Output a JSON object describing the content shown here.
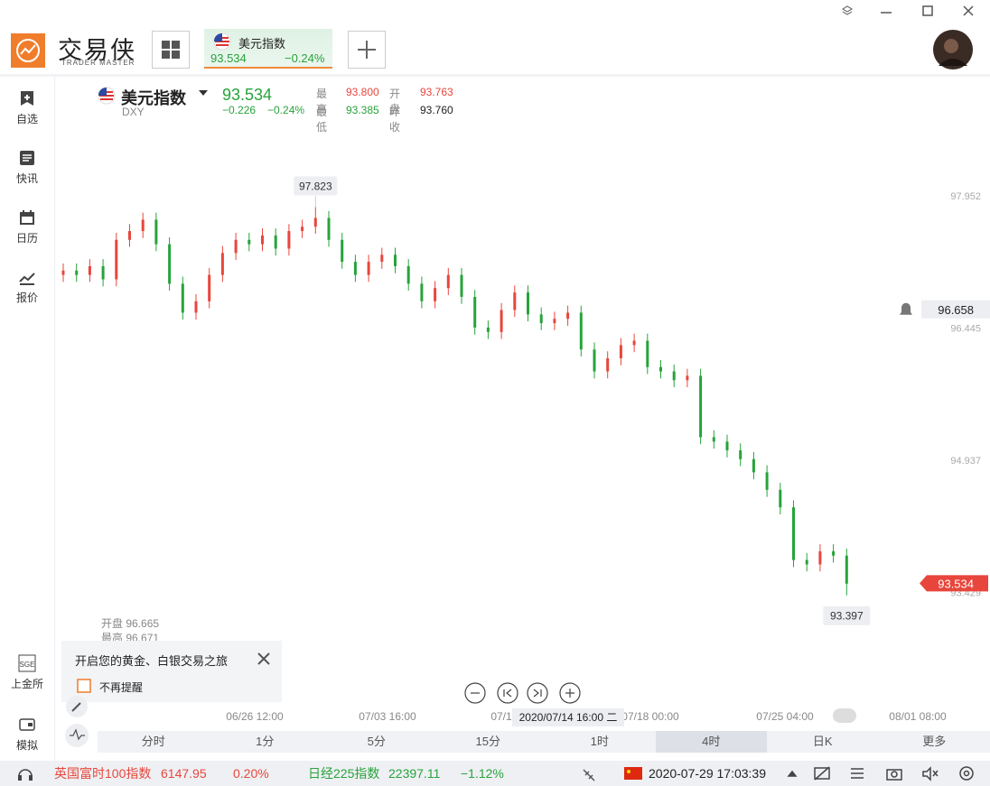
{
  "header": {
    "logo_text": "交易侠",
    "logo_sub": "TRADER MASTER",
    "tab": {
      "name": "美元指数",
      "price": "93.534",
      "change": "−0.24%"
    }
  },
  "sidebar": {
    "items": [
      "自选",
      "快讯",
      "日历",
      "报价"
    ],
    "bottom_items": [
      "上金所",
      "模拟"
    ]
  },
  "quote": {
    "name": "美元指数",
    "code": "DXY",
    "price": "93.534",
    "change": "−0.226",
    "change_pct": "−0.24%",
    "high_label": "最高",
    "high": "93.800",
    "open_label": "开盘",
    "open": "93.763",
    "low_label": "最低",
    "low": "93.385",
    "prev_close_label": "昨收",
    "prev_close": "93.760"
  },
  "chart_data": {
    "type": "candlestick",
    "open": [
      97.05,
      97.1,
      97.05,
      97.15,
      97.0,
      97.45,
      97.55,
      97.68,
      97.4,
      96.95,
      96.62,
      96.75,
      97.05,
      97.3,
      97.45,
      97.4,
      97.5,
      97.35,
      97.55,
      97.6,
      97.7,
      97.45,
      97.2,
      97.05,
      97.2,
      97.28,
      97.15,
      96.95,
      96.75,
      96.9,
      97.05,
      96.8,
      96.45,
      96.4,
      96.65,
      96.85,
      96.6,
      96.5,
      96.55,
      96.62,
      96.2,
      95.95,
      96.1,
      96.25,
      96.3,
      96.0,
      95.95,
      95.85,
      95.9,
      95.2,
      95.15,
      95.05,
      94.95,
      94.8,
      94.6,
      94.4,
      93.8,
      93.75,
      93.9,
      93.85
    ],
    "high": [
      97.18,
      97.18,
      97.23,
      97.23,
      97.53,
      97.63,
      97.76,
      97.76,
      97.48,
      97.03,
      96.83,
      97.13,
      97.38,
      97.53,
      97.53,
      97.58,
      97.58,
      97.63,
      97.68,
      97.823,
      97.78,
      97.53,
      97.28,
      97.28,
      97.36,
      97.36,
      97.23,
      97.03,
      96.98,
      97.13,
      97.13,
      96.88,
      96.53,
      96.73,
      96.93,
      96.93,
      96.68,
      96.63,
      96.7,
      96.7,
      96.28,
      96.18,
      96.33,
      96.38,
      96.38,
      96.08,
      96.03,
      95.98,
      95.98,
      95.28,
      95.23,
      95.13,
      95.03,
      94.88,
      94.68,
      94.48,
      93.88,
      93.98,
      93.98,
      93.93
    ],
    "low": [
      96.97,
      96.97,
      96.97,
      96.92,
      96.92,
      97.37,
      97.47,
      97.32,
      96.87,
      96.54,
      96.54,
      96.67,
      96.97,
      97.22,
      97.32,
      97.32,
      97.27,
      97.27,
      97.47,
      97.52,
      97.37,
      97.12,
      96.97,
      96.97,
      97.12,
      97.07,
      96.87,
      96.67,
      96.67,
      96.82,
      96.72,
      96.37,
      96.32,
      96.32,
      96.57,
      96.52,
      96.42,
      96.42,
      96.47,
      96.12,
      95.87,
      95.87,
      96.02,
      96.17,
      95.92,
      95.87,
      95.77,
      95.77,
      95.12,
      95.07,
      94.97,
      94.87,
      94.72,
      94.52,
      94.32,
      93.72,
      93.67,
      93.67,
      93.77,
      93.397
    ],
    "close": [
      97.1,
      97.05,
      97.15,
      97.0,
      97.45,
      97.55,
      97.68,
      97.4,
      96.95,
      96.62,
      96.75,
      97.05,
      97.3,
      97.45,
      97.4,
      97.5,
      97.35,
      97.55,
      97.6,
      97.7,
      97.45,
      97.2,
      97.05,
      97.2,
      97.28,
      97.15,
      96.95,
      96.75,
      96.9,
      97.05,
      96.8,
      96.45,
      96.4,
      96.65,
      96.85,
      96.6,
      96.5,
      96.55,
      96.62,
      96.2,
      95.95,
      96.1,
      96.25,
      96.3,
      96.0,
      95.95,
      95.85,
      95.9,
      95.2,
      95.15,
      95.05,
      94.95,
      94.8,
      94.6,
      94.4,
      93.8,
      93.75,
      93.9,
      93.85,
      93.53
    ],
    "up_color": "#e8463c",
    "down_color": "#27a33b",
    "ylim": [
      92.777,
      98.744
    ],
    "yticks": [
      93.429,
      94.937,
      96.445,
      97.952
    ],
    "x_labels": [
      "06/26 12:00",
      "07/03 16:00",
      "07/1",
      "07/18 00:00",
      "07/25 04:00",
      "08/01 08:00"
    ],
    "crosshair_label": "2020/07/14 16:00 二",
    "crosshair_price": 96.658,
    "last_price": 93.534,
    "tooltip": {
      "open": "开盘 96.665",
      "high": "最高 96.671"
    }
  },
  "popup": {
    "text": "开启您的黄金、白银交易之旅",
    "checkbox": "不再提醒"
  },
  "periods": [
    "分时",
    "1分",
    "5分",
    "15分",
    "1时",
    "4时",
    "日K",
    "更多"
  ],
  "ticker": [
    {
      "name": "英国富时100指数",
      "value": "6147.95",
      "change": "0.20%"
    },
    {
      "name": "日经225指数",
      "value": "22397.11",
      "change": "−1.12%"
    }
  ],
  "datetime": "2020-07-29 17:03:39"
}
